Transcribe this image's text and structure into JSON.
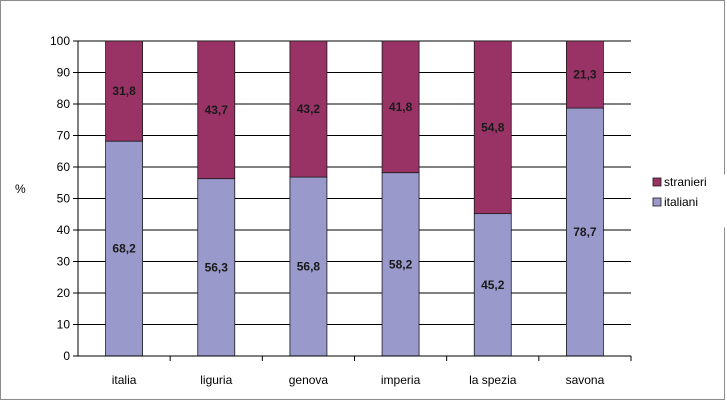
{
  "chart_data": {
    "type": "bar",
    "stacked": true,
    "categories": [
      "italia",
      "liguria",
      "genova",
      "imperia",
      "la spezia",
      "savona"
    ],
    "series": [
      {
        "name": "italiani",
        "values": [
          68.2,
          56.3,
          56.8,
          58.2,
          45.2,
          78.7
        ],
        "color": "#9999cc"
      },
      {
        "name": "stranieri",
        "values": [
          31.8,
          43.7,
          43.2,
          41.8,
          54.8,
          21.3
        ],
        "color": "#993366"
      }
    ],
    "ylabel": "%",
    "ylim": [
      0,
      100
    ],
    "yticks": [
      0,
      10,
      20,
      30,
      40,
      50,
      60,
      70,
      80,
      90,
      100
    ],
    "grid": true,
    "legend_position": "right",
    "legend_order": [
      "stranieri",
      "italiani"
    ]
  }
}
